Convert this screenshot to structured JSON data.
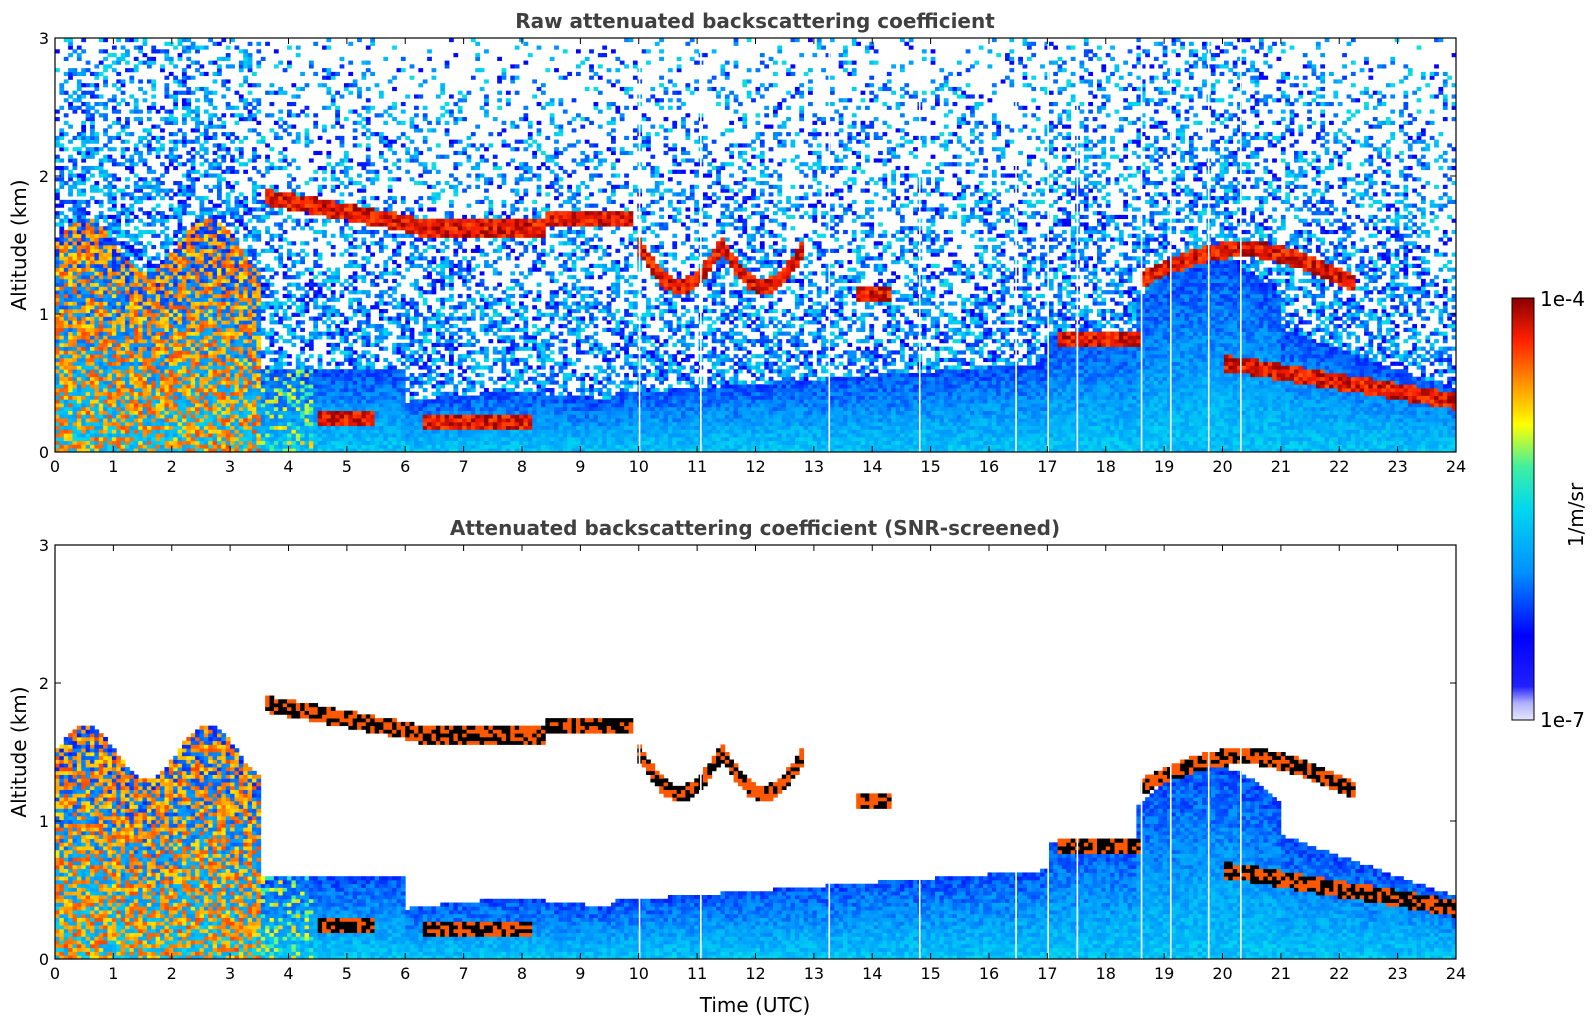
{
  "chart_data": [
    {
      "type": "heatmap",
      "title": "Raw attenuated backscattering coefficient",
      "xlabel": "",
      "ylabel": "Altitude (km)",
      "xlim": [
        0,
        24
      ],
      "ylim": [
        0,
        3
      ],
      "x_ticks": [
        0,
        1,
        2,
        3,
        4,
        5,
        6,
        7,
        8,
        9,
        10,
        11,
        12,
        13,
        14,
        15,
        16,
        17,
        18,
        19,
        20,
        21,
        22,
        23,
        24
      ],
      "y_ticks": [
        0,
        1,
        2,
        3
      ],
      "grid": false,
      "features": [
        {
          "name": "cloud layer",
          "x_range": [
            6.5,
            8.3
          ],
          "altitude": [
            1.55,
            1.68
          ],
          "level": "1e-4"
        },
        {
          "name": "cloud layer",
          "x_range": [
            8.3,
            9.9
          ],
          "altitude": [
            1.65,
            1.72
          ],
          "level": "1e-4"
        },
        {
          "name": "low cloud",
          "x_range": [
            6.3,
            8.2
          ],
          "altitude": [
            0.15,
            0.3
          ],
          "level": "1e-4"
        },
        {
          "name": "cloud layer",
          "x_range": [
            17.3,
            18.5
          ],
          "altitude": [
            0.75,
            0.9
          ],
          "level": "1e-4"
        },
        {
          "name": "aerosol",
          "x_range": [
            0,
            3.5
          ],
          "altitude": [
            0,
            1.6
          ],
          "level": "high"
        }
      ]
    },
    {
      "type": "heatmap",
      "title": "Attenuated backscattering coefficient (SNR-screened)",
      "xlabel": "Time (UTC)",
      "ylabel": "Altitude (km)",
      "xlim": [
        0,
        24
      ],
      "ylim": [
        0,
        3
      ],
      "x_ticks": [
        0,
        1,
        2,
        3,
        4,
        5,
        6,
        7,
        8,
        9,
        10,
        11,
        12,
        13,
        14,
        15,
        16,
        17,
        18,
        19,
        20,
        21,
        22,
        23,
        24
      ],
      "y_ticks": [
        0,
        1,
        2,
        3
      ],
      "grid": false
    }
  ],
  "colorbar": {
    "label": "1/m/sr",
    "max_label": "1e-4",
    "min_label": "1e-7",
    "scale": "log",
    "range": [
      1e-07,
      0.0001
    ],
    "colors": [
      "#e6e6fa",
      "#0000ff",
      "#00c8ff",
      "#00e8c0",
      "#ffff00",
      "#ff8c00",
      "#ff2000",
      "#8b0000"
    ]
  }
}
